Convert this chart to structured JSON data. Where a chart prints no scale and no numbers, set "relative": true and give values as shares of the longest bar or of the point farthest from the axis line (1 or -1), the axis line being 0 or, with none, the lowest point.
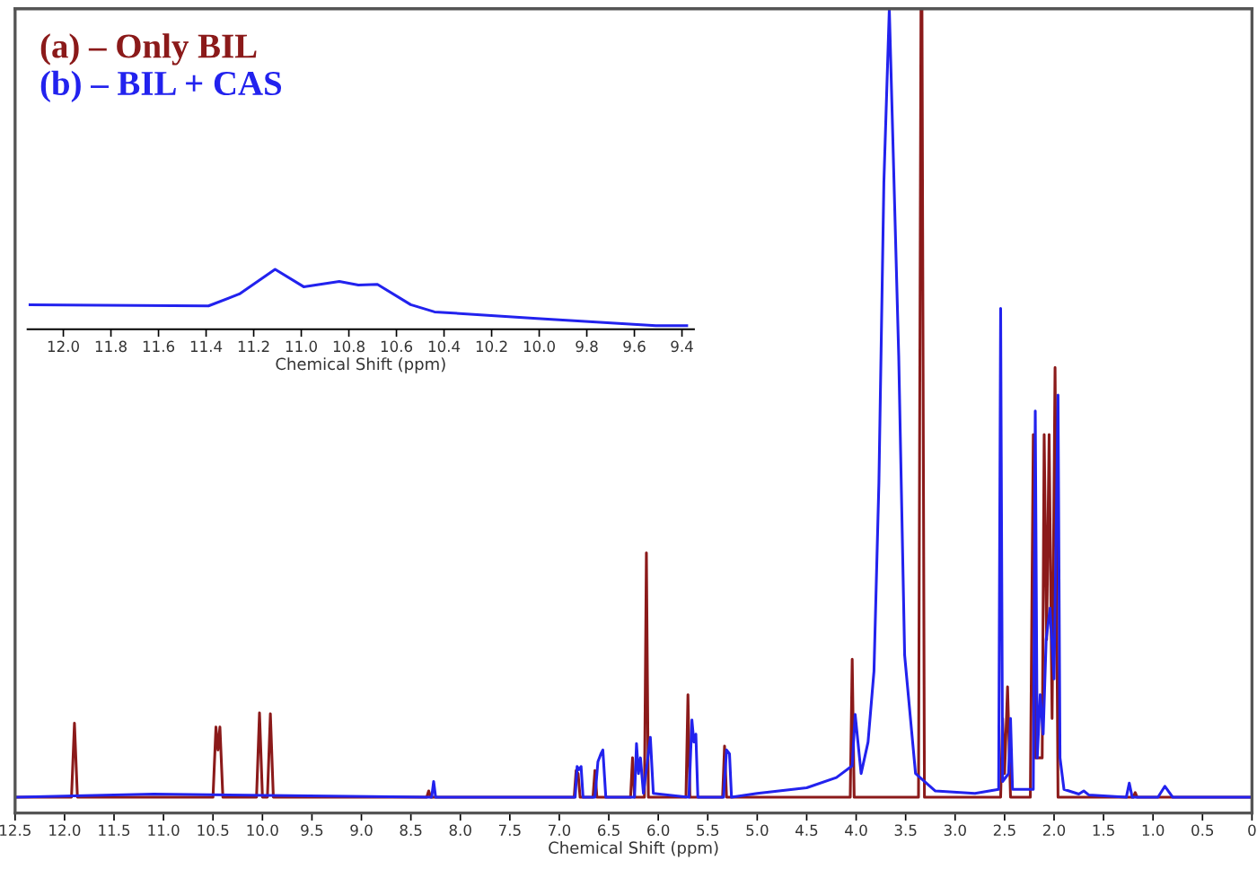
{
  "chart_data": [
    {
      "type": "line",
      "relative": true,
      "xlabel": "Chemical Shift (ppm)",
      "xlim": [
        12.5,
        0
      ],
      "xticks": [
        12.5,
        {
          "value": 12,
          "label": "12.0"
        },
        11.5,
        {
          "value": 11,
          "label": "11.0"
        },
        10.5,
        {
          "value": 10,
          "label": "10.0"
        },
        9.5,
        {
          "value": 9,
          "label": "9.0"
        },
        8.5,
        {
          "value": 8,
          "label": "8.0"
        },
        7.5,
        {
          "value": 7,
          "label": "7.0"
        },
        6.5,
        {
          "value": 6,
          "label": "6.0"
        },
        5.5,
        {
          "value": 5,
          "label": "5.0"
        },
        4.5,
        {
          "value": 4,
          "label": "4.0"
        },
        3.5,
        {
          "value": 3,
          "label": "3.0"
        },
        2.5,
        {
          "value": 2,
          "label": "2.0"
        },
        1.5,
        {
          "value": 1,
          "label": "1.0"
        },
        0.5,
        0
      ],
      "tick_labels": "x",
      "legend": "top left",
      "grid": false,
      "marker": "none",
      "line_style": "solid",
      "series": [
        {
          "name": "(a) – Only BIL",
          "color": "#8b1a1a",
          "x": [
            12.5,
            11.93,
            11.9,
            11.87,
            10.5,
            10.47,
            10.45,
            10.43,
            10.4,
            10.06,
            10.03,
            10.0,
            9.95,
            9.92,
            9.89,
            8.34,
            8.32,
            8.3,
            6.85,
            6.83,
            6.81,
            6.79,
            6.66,
            6.64,
            6.62,
            6.28,
            6.26,
            6.24,
            6.14,
            6.12,
            6.1,
            5.72,
            5.7,
            5.68,
            5.35,
            5.33,
            5.31,
            4.06,
            4.04,
            4.02,
            3.37,
            3.345,
            3.335,
            3.31,
            2.54,
            2.52,
            2.5,
            2.47,
            2.44,
            2.24,
            2.21,
            2.19,
            2.12,
            2.1,
            2.075,
            2.05,
            2.02,
            1.99,
            1.96,
            1.2,
            1.18,
            1.16,
            0
          ],
          "values": [
            0,
            0,
            0.094,
            0,
            0,
            0.089,
            0.06,
            0.089,
            0,
            0,
            0.107,
            0,
            0,
            0.106,
            0,
            0,
            0.008,
            0,
            0,
            0.034,
            0.03,
            0,
            0,
            0.034,
            0,
            0,
            0.05,
            0,
            0,
            0.31,
            0,
            0,
            0.13,
            0,
            0,
            0.065,
            0,
            0,
            0.175,
            0,
            0,
            1,
            1,
            0,
            0,
            0.1,
            0.03,
            0.14,
            0,
            0,
            0.46,
            0.05,
            0.05,
            0.46,
            0.2,
            0.46,
            0.1,
            0.545,
            0,
            0,
            0.006,
            0,
            0
          ]
        },
        {
          "name": "(b) – BIL + CAS",
          "color": "#2222ee",
          "x": [
            12.5,
            11.1,
            8.29,
            8.27,
            8.25,
            6.84,
            6.82,
            6.8,
            6.78,
            6.76,
            6.64,
            6.61,
            6.58,
            6.56,
            6.53,
            6.24,
            6.22,
            6.2,
            6.18,
            6.15,
            6.08,
            6.05,
            5.69,
            5.66,
            5.64,
            5.62,
            5.6,
            5.34,
            5.31,
            5.28,
            5.26,
            5.0,
            4.5,
            4.2,
            4.04,
            4.01,
            3.95,
            3.88,
            3.82,
            3.77,
            3.72,
            3.665,
            3.57,
            3.51,
            3.4,
            3.2,
            2.8,
            2.56,
            2.54,
            2.52,
            2.46,
            2.44,
            2.42,
            2.21,
            2.19,
            2.17,
            2.14,
            2.11,
            2.08,
            2.04,
            2.0,
            1.96,
            1.94,
            1.9,
            1.75,
            1.7,
            1.65,
            1.27,
            1.24,
            1.21,
            0.95,
            0.88,
            0.8,
            0
          ],
          "values": [
            0,
            0.004,
            0,
            0.02,
            0,
            0,
            0.039,
            0.035,
            0.039,
            0,
            0,
            0.045,
            0.055,
            0.06,
            0,
            0,
            0.068,
            0.03,
            0.05,
            0.005,
            0.076,
            0.005,
            0,
            0.098,
            0.07,
            0.08,
            0,
            0,
            0.06,
            0.055,
            0,
            0.005,
            0.012,
            0.025,
            0.04,
            0.105,
            0.03,
            0.07,
            0.16,
            0.4,
            0.78,
            1,
            0.56,
            0.18,
            0.03,
            0.008,
            0.005,
            0.01,
            0.62,
            0.02,
            0.03,
            0.1,
            0.01,
            0.01,
            0.49,
            0.05,
            0.13,
            0.08,
            0.2,
            0.24,
            0.15,
            0.51,
            0.05,
            0.01,
            0.004,
            0.008,
            0.003,
            0,
            0.018,
            0,
            0,
            0.014,
            0,
            0
          ]
        }
      ]
    },
    {
      "type": "line",
      "relative": true,
      "xlabel": "Chemical Shift (ppm)",
      "xlim": [
        12.15,
        9.35
      ],
      "xticks": [
        {
          "value": 12,
          "label": "12.0"
        },
        11.8,
        11.6,
        11.4,
        11.2,
        {
          "value": 11,
          "label": "11.0"
        },
        10.8,
        10.6,
        10.4,
        10.2,
        {
          "value": 10,
          "label": "10.0"
        },
        9.8,
        9.6,
        9.4
      ],
      "tick_labels": "x",
      "grid": false,
      "marker": "none",
      "line_style": "solid",
      "series": [
        {
          "color": "#2222ee",
          "x": [
            12.14,
            11.39,
            11.26,
            11.11,
            10.99,
            10.84,
            10.76,
            10.68,
            10.54,
            10.44,
            10.01,
            9.76,
            9.51,
            9.38
          ],
          "values": [
            0.41,
            0.39,
            0.59,
            1,
            0.71,
            0.8,
            0.74,
            0.75,
            0.41,
            0.29,
            0.18,
            0.12,
            0.06,
            0.06
          ]
        }
      ]
    }
  ]
}
